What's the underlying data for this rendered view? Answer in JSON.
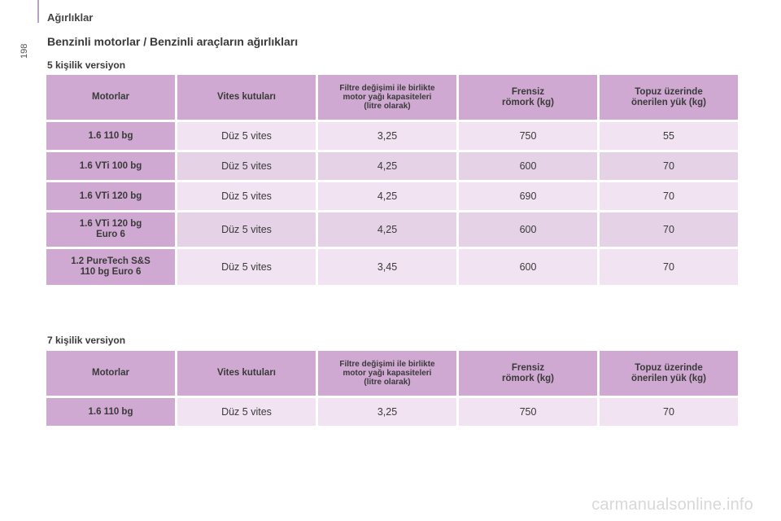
{
  "header": {
    "section": "Ağırlıklar",
    "page_number": "198"
  },
  "title": "Benzinli motorlar / Benzinli araçların ağırlıkları",
  "columns": {
    "engine": "Motorlar",
    "gearbox": "Vites kutuları",
    "oil_l1": "Filtre değişimi ile birlikte",
    "oil_l2": "motor yağı kapasiteleri",
    "oil_l3": "(litre olarak)",
    "brake_l1": "Frensiz",
    "brake_l2": "römork (kg)",
    "nose_l1": "Topuz üzerinde",
    "nose_l2": "önerilen yük (kg)"
  },
  "table5": {
    "heading": "5 kişilik versiyon",
    "rows": [
      {
        "engine_l1": "1.6 110 bg",
        "engine_l2": "",
        "gearbox": "Düz 5 vites",
        "oil": "3,25",
        "braked": "750",
        "nose": "55"
      },
      {
        "engine_l1": "1.6 VTi 100 bg",
        "engine_l2": "",
        "gearbox": "Düz 5 vites",
        "oil": "4,25",
        "braked": "600",
        "nose": "70"
      },
      {
        "engine_l1": "1.6 VTi 120 bg",
        "engine_l2": "",
        "gearbox": "Düz 5 vites",
        "oil": "4,25",
        "braked": "690",
        "nose": "70"
      },
      {
        "engine_l1": "1.6 VTi 120 bg",
        "engine_l2": "Euro 6",
        "gearbox": "Düz 5 vites",
        "oil": "4,25",
        "braked": "600",
        "nose": "70"
      },
      {
        "engine_l1": "1.2 PureTech S&S",
        "engine_l2": "110 bg Euro 6",
        "gearbox": "Düz 5 vites",
        "oil": "3,45",
        "braked": "600",
        "nose": "70"
      }
    ]
  },
  "table7": {
    "heading": "7 kişilik versiyon",
    "rows": [
      {
        "engine_l1": "1.6 110 bg",
        "engine_l2": "",
        "gearbox": "Düz 5 vites",
        "oil": "3,25",
        "braked": "750",
        "nose": "70"
      }
    ]
  },
  "watermark": "carmanualsonline.info",
  "colors": {
    "header_cell": "#cfa9d1",
    "row_light": "#f1e3f1",
    "row_dark": "#e6d2e7"
  }
}
